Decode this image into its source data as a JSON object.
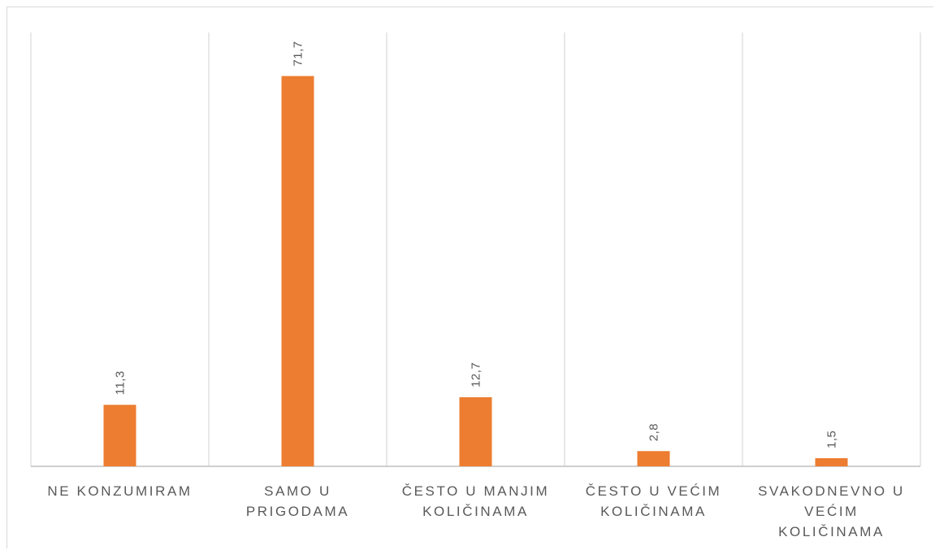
{
  "chart_data": {
    "type": "bar",
    "categories": [
      [
        "NE KONZUMIRAM"
      ],
      [
        "SAMO U",
        "PRIGODAMA"
      ],
      [
        "ČESTO U MANJIM",
        "KOLIČINAMA"
      ],
      [
        "ČESTO U VEĆIM",
        "KOLIČINAMA"
      ],
      [
        "SVAKODNEVNO U",
        "VEĆIM",
        "KOLIČINAMA"
      ]
    ],
    "values": [
      11.3,
      71.7,
      12.7,
      2.8,
      1.5
    ],
    "value_labels": [
      "11,3",
      "71,7",
      "12,7",
      "2,8",
      "1,5"
    ],
    "title": "",
    "xlabel": "",
    "ylabel": "",
    "ylim": [
      0,
      79.7
    ],
    "grid": "vertical category separators",
    "legend": "none",
    "bar_color": "#ed7d31"
  }
}
